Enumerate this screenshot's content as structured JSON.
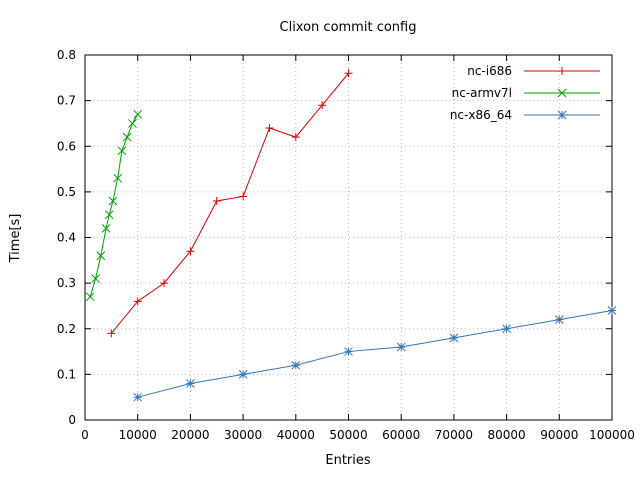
{
  "chart_data": {
    "type": "line",
    "title": "Clixon commit config",
    "xlabel": "Entries",
    "ylabel": "Time[s]",
    "xlim": [
      0,
      100000
    ],
    "ylim": [
      0,
      0.8
    ],
    "xticks": [
      0,
      10000,
      20000,
      30000,
      40000,
      50000,
      60000,
      70000,
      80000,
      90000,
      100000
    ],
    "xtick_labels": [
      "0",
      "10000",
      "20000",
      "30000",
      "40000",
      "50000",
      "60000",
      "70000",
      "80000",
      "90000",
      "100000"
    ],
    "yticks": [
      0,
      0.1,
      0.2,
      0.3,
      0.4,
      0.5,
      0.6,
      0.7,
      0.8
    ],
    "ytick_labels": [
      "0",
      "0.1",
      "0.2",
      "0.3",
      "0.4",
      "0.5",
      "0.6",
      "0.7",
      "0.8"
    ],
    "grid": "dotted",
    "grid_color": "#b8b8b8",
    "border_color": "#000000",
    "legend_position": "top-right",
    "series": [
      {
        "name": "nc-i686",
        "color": "#dd0000",
        "marker": "plus",
        "points": [
          [
            5000,
            0.19
          ],
          [
            10000,
            0.26
          ],
          [
            15000,
            0.3
          ],
          [
            20000,
            0.37
          ],
          [
            25000,
            0.48
          ],
          [
            30000,
            0.49
          ],
          [
            35000,
            0.64
          ],
          [
            40000,
            0.62
          ],
          [
            45000,
            0.69
          ],
          [
            50000,
            0.76
          ]
        ]
      },
      {
        "name": "nc-armv7l",
        "color": "#00a000",
        "marker": "x",
        "points": [
          [
            1000,
            0.27
          ],
          [
            2000,
            0.31
          ],
          [
            3000,
            0.36
          ],
          [
            4000,
            0.42
          ],
          [
            4600,
            0.45
          ],
          [
            5300,
            0.48
          ],
          [
            6200,
            0.53
          ],
          [
            7000,
            0.59
          ],
          [
            8000,
            0.62
          ],
          [
            9000,
            0.65
          ],
          [
            10000,
            0.67
          ]
        ]
      },
      {
        "name": "nc-x86_64",
        "color": "#3377bb",
        "marker": "asterisk",
        "points": [
          [
            10000,
            0.05
          ],
          [
            20000,
            0.08
          ],
          [
            30000,
            0.1
          ],
          [
            40000,
            0.12
          ],
          [
            50000,
            0.15
          ],
          [
            60000,
            0.16
          ],
          [
            70000,
            0.18
          ],
          [
            80000,
            0.2
          ],
          [
            90000,
            0.22
          ],
          [
            100000,
            0.24
          ]
        ]
      }
    ]
  }
}
